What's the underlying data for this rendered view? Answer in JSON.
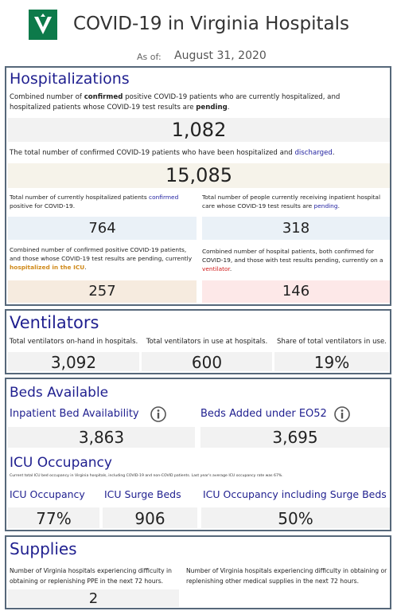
{
  "header": {
    "title": "COVID-19 in Virginia Hospitals",
    "as_of_label": "As of:",
    "as_of_date": "August 31, 2020"
  },
  "hospitalizations": {
    "title": "Hospitalizations",
    "metrics": [
      {
        "description": [
          "Combined number of ",
          "confirmed",
          " positive COVID-19 patients who are currently hospitalized, and hospitalized patients whose COVID-19 test results are ",
          "pending",
          "."
        ],
        "value": "1,082"
      },
      {
        "description": [
          "The total number of confirmed COVID-19 patients who have been hospitalized and ",
          "discharged",
          "."
        ],
        "value": "15,085"
      },
      {
        "description": [
          "Total number of currently hospitalized patients ",
          "confirmed",
          " positive for COVID-19."
        ],
        "value": "764"
      },
      {
        "description": [
          "Total number of people currently receiving inpatient hospital care whose COVID-19 test results are ",
          "pending",
          "."
        ],
        "value": "318"
      },
      {
        "description": [
          "Combined number of confirmed positive COVID-19 patients, and those whose COVID-19 test results are pending, currently ",
          "hospitalized in the ICU",
          "."
        ],
        "value": "257"
      },
      {
        "description": [
          "Combined number of hospital patients, both confirmed for COVID-19, and those with test results pending, currently on a ",
          "ventilator",
          "."
        ],
        "value": "146"
      }
    ]
  },
  "ventilators": {
    "title": "Ventilators",
    "metrics": [
      {
        "label": "Total ventilators on-hand in hospitals.",
        "value": "3,092"
      },
      {
        "label": "Total ventilators in use at hospitals.",
        "value": "600"
      },
      {
        "label": "Share of total ventilators in use.",
        "value": "19%"
      }
    ]
  },
  "beds": {
    "title": "Beds Available",
    "metrics": [
      {
        "label": "Inpatient Bed Availability",
        "value": "3,863"
      },
      {
        "label": "Beds Added under EO52",
        "value": "3,695"
      }
    ],
    "icu": {
      "title": "ICU Occupancy",
      "note": "Current total ICU bed occupancy in Virginia hospitals, including COVID-19 and non-COVID patients. Last year's average ICU occupancy rate was 67%.",
      "metrics": [
        {
          "label": "ICU Occupancy",
          "value": "77%"
        },
        {
          "label": "ICU Surge Beds",
          "value": "906"
        },
        {
          "label": "ICU Occupancy including Surge Beds",
          "value": "50%"
        }
      ]
    }
  },
  "supplies": {
    "title": "Supplies",
    "metrics": [
      {
        "label": "Number of Virginia hospitals experiencing difficulty in obtaining or replenishing PPE in the next 72 hours.",
        "value": "2"
      },
      {
        "label": "Number of Virginia hospitals experiencing difficulty in obtaining or replenishing other medical supplies in the next 72 hours."
      }
    ]
  }
}
